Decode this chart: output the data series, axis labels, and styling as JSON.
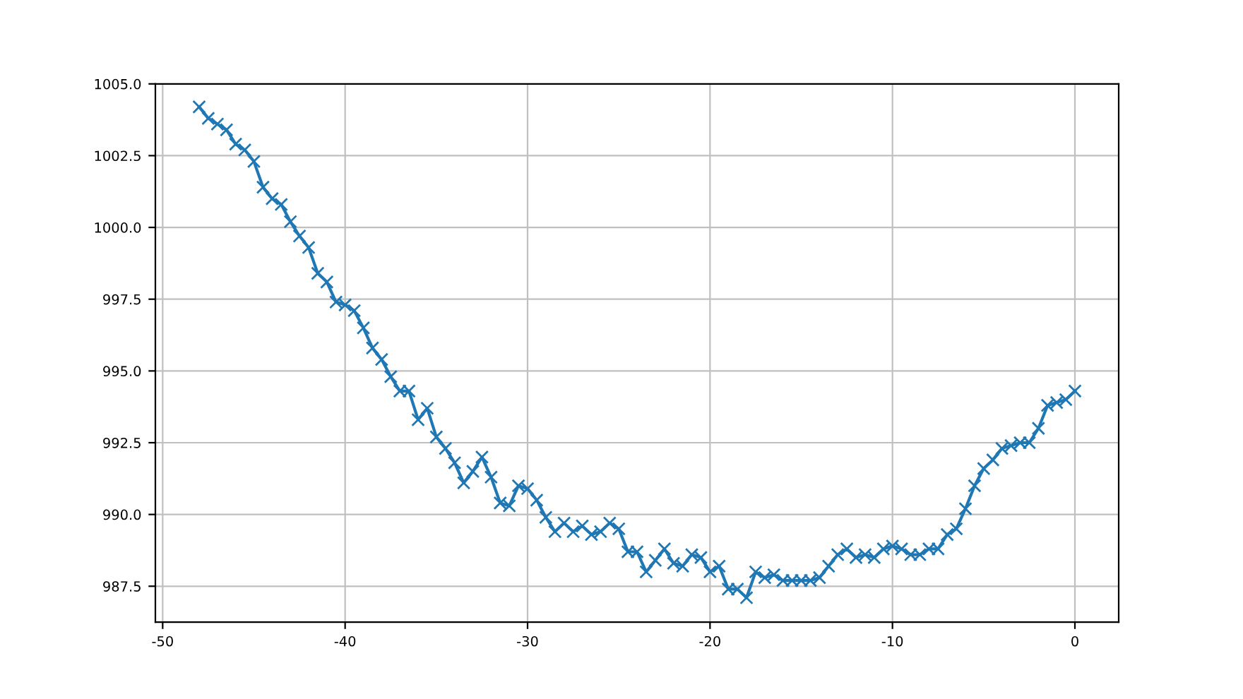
{
  "chart_data": {
    "type": "line",
    "marker": "cross",
    "line_style": "solid",
    "grid": true,
    "legend": false,
    "x": [
      -48,
      -47.5,
      -47,
      -46.5,
      -46,
      -45.5,
      -45,
      -44.5,
      -44,
      -43.5,
      -43,
      -42.5,
      -42,
      -41.5,
      -41,
      -40.5,
      -40,
      -39.5,
      -39,
      -38.5,
      -38,
      -37.5,
      -37,
      -36.5,
      -36,
      -35.5,
      -35,
      -34.5,
      -34,
      -33.5,
      -33,
      -32.5,
      -32,
      -31.5,
      -31,
      -30.5,
      -30,
      -29.5,
      -29,
      -28.5,
      -28,
      -27.5,
      -27,
      -26.5,
      -26,
      -25.5,
      -25,
      -24.5,
      -24,
      -23.5,
      -23,
      -22.5,
      -22,
      -21.5,
      -21,
      -20.5,
      -20,
      -19.5,
      -19,
      -18.5,
      -18,
      -17.5,
      -17,
      -16.5,
      -16,
      -15.5,
      -15,
      -14.5,
      -14,
      -13.5,
      -13,
      -12.5,
      -12,
      -11.5,
      -11,
      -10.5,
      -10,
      -9.5,
      -9,
      -8.5,
      -8,
      -7.5,
      -7,
      -6.5,
      -6,
      -5.5,
      -5,
      -4.5,
      -4,
      -3.5,
      -3,
      -2.5,
      -2,
      -1.5,
      -1,
      -0.5,
      0
    ],
    "series": [
      {
        "color": "#1f77b4",
        "values": [
          1004.2,
          1003.8,
          1003.6,
          1003.4,
          1002.9,
          1002.7,
          1002.3,
          1001.4,
          1001.0,
          1000.8,
          1000.2,
          999.7,
          999.3,
          998.4,
          998.1,
          997.4,
          997.3,
          997.1,
          996.5,
          995.8,
          995.4,
          994.8,
          994.3,
          994.3,
          993.3,
          993.7,
          992.7,
          992.3,
          991.8,
          991.1,
          991.5,
          992.0,
          991.3,
          990.4,
          990.3,
          991.0,
          990.9,
          990.5,
          989.9,
          989.4,
          989.7,
          989.4,
          989.6,
          989.3,
          989.4,
          989.7,
          989.5,
          988.7,
          988.7,
          988.0,
          988.4,
          988.8,
          988.3,
          988.2,
          988.6,
          988.5,
          988.0,
          988.2,
          987.4,
          987.4,
          987.1,
          988.0,
          987.8,
          987.9,
          987.7,
          987.7,
          987.7,
          987.7,
          987.8,
          988.2,
          988.6,
          988.8,
          988.5,
          988.6,
          988.5,
          988.8,
          988.9,
          988.8,
          988.6,
          988.6,
          988.8,
          988.8,
          989.3,
          989.5,
          990.2,
          991.0,
          991.6,
          991.9,
          992.3,
          992.4,
          992.5,
          992.5,
          993.0,
          993.8,
          993.9,
          994.0,
          994.3
        ]
      }
    ],
    "xlim": [
      -50.4,
      2.4
    ],
    "ylim": [
      986.25,
      1005.0
    ],
    "xticks": [
      -50,
      -40,
      -30,
      -20,
      -10,
      0
    ],
    "yticks": [
      {
        "value": 987.5,
        "label": "987.5"
      },
      {
        "value": 990,
        "label": "990.0"
      },
      {
        "value": 992.5,
        "label": "992.5"
      },
      {
        "value": 995,
        "label": "995.0"
      },
      {
        "value": 997.5,
        "label": "997.5"
      },
      {
        "value": 1000,
        "label": "1000.0"
      },
      {
        "value": 1002.5,
        "label": "1002.5"
      },
      {
        "value": 1005,
        "label": "1005.0"
      }
    ]
  }
}
